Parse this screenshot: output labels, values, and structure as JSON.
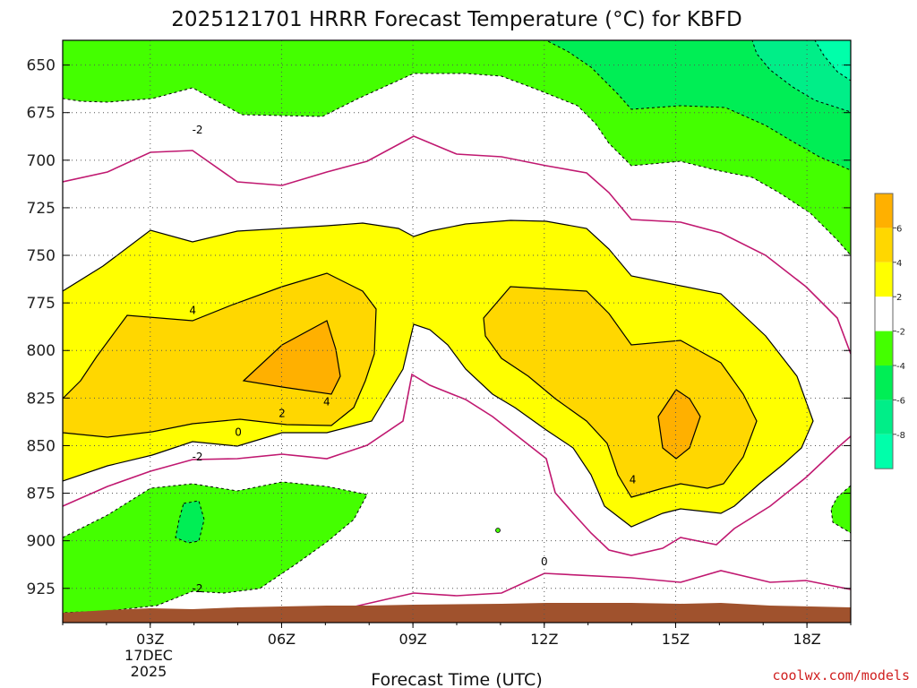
{
  "chart_data": {
    "type": "contour",
    "title": "2025121701 HRRR Forecast Temperature (°C) for KBFD",
    "xlabel": "Forecast Time (UTC)",
    "ylabel": "",
    "x_ticks": [
      "03Z",
      "06Z",
      "09Z",
      "12Z",
      "15Z",
      "18Z"
    ],
    "x_tick_hours": [
      3,
      6,
      9,
      12,
      15,
      18
    ],
    "x_first_tick_date": [
      "17DEC",
      "2025"
    ],
    "xlim": [
      1,
      19
    ],
    "y_ticks": [
      "650",
      "675",
      "700",
      "725",
      "750",
      "775",
      "800",
      "825",
      "850",
      "875",
      "900",
      "925"
    ],
    "y_tick_values": [
      650,
      675,
      700,
      725,
      750,
      775,
      800,
      825,
      850,
      875,
      900,
      925
    ],
    "ylim": [
      637,
      943
    ],
    "grid": true,
    "colorbar": {
      "labels": [
        "6",
        "4",
        "2",
        "-2",
        "-4",
        "-6",
        "-8"
      ],
      "levels": [
        [
          6,
          "#ffb000"
        ],
        [
          4,
          "#ffd700"
        ],
        [
          2,
          "#ffff00"
        ],
        [
          -2,
          "#ffffff"
        ],
        [
          -4,
          "#44ff00"
        ],
        [
          -6,
          "#00ee55"
        ],
        [
          -8,
          "#00ee88"
        ],
        [
          -10,
          "#00ffaa"
        ]
      ]
    },
    "colors": {
      "zero_line": "#c01870",
      "terrain": "#a0522d",
      "band_6": "#ffb000",
      "band_4": "#ffd700",
      "band_2": "#ffff00",
      "band_m2": "#44ff00",
      "band_m4": "#00ee55",
      "band_m6": "#00ee88",
      "band_m8": "#00ffaa"
    },
    "contour_labels": [
      {
        "text": "-2",
        "hour": 4.08,
        "level": 684
      },
      {
        "text": "4",
        "hour": 3.97,
        "level": 779
      },
      {
        "text": "2",
        "hour": 6.01,
        "level": 833
      },
      {
        "text": "4",
        "hour": 7.03,
        "level": 827
      },
      {
        "text": "0",
        "hour": 5.01,
        "level": 843
      },
      {
        "text": "-2",
        "hour": 4.08,
        "level": 856
      },
      {
        "text": "-2",
        "hour": 4.08,
        "level": 925
      },
      {
        "text": "4",
        "hour": 14.02,
        "level": 868
      },
      {
        "text": "0",
        "hour": 12.0,
        "level": 911
      }
    ]
  },
  "credit": "coolwx.com/models"
}
